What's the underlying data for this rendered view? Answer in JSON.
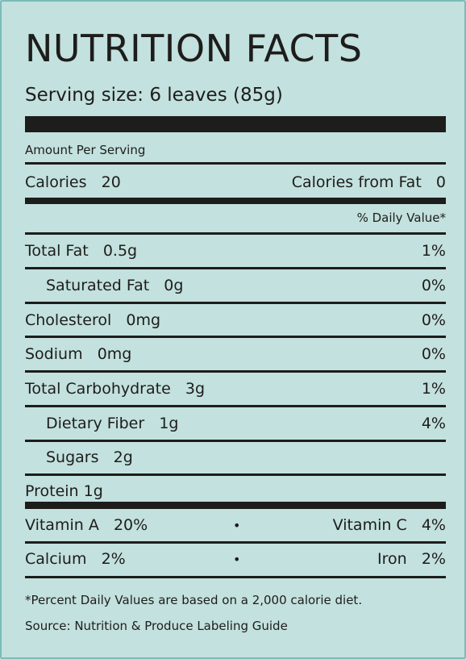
{
  "title": "NUTRITION FACTS",
  "serving_size": "Serving size: 6 leaves (85g)",
  "amount_per_serving": "Amount Per Serving",
  "calories": {
    "label": "Calories",
    "value": "20"
  },
  "calories_from_fat": {
    "label": "Calories from Fat",
    "value": "0"
  },
  "daily_value_header": "% Daily Value*",
  "nutrients": [
    {
      "label": "Total Fat",
      "amount": "0.5g",
      "dv": "1%"
    },
    {
      "label": "Saturated Fat",
      "amount": "0g",
      "dv": "0%"
    },
    {
      "label": "Cholesterol",
      "amount": "0mg",
      "dv": "0%"
    },
    {
      "label": "Sodium",
      "amount": "0mg",
      "dv": "0%"
    },
    {
      "label": "Total Carbohydrate",
      "amount": "3g",
      "dv": "1%"
    },
    {
      "label": "Dietary Fiber",
      "amount": "1g",
      "dv": "4%"
    },
    {
      "label": "Sugars",
      "amount": "2g"
    },
    {
      "label": "Protein",
      "amount": "1g"
    }
  ],
  "vitamins": [
    {
      "left_label": "Vitamin A",
      "left_value": "20%",
      "separator": "•",
      "right_label": "Vitamin C",
      "right_value": "4%"
    },
    {
      "left_label": "Calcium",
      "left_value": "2%",
      "separator": "•",
      "right_label": "Iron",
      "right_value": "2%"
    }
  ],
  "footnote": "*Percent Daily Values are based on a 2,000 calorie diet.",
  "source": "Source: Nutrition & Produce Labeling Guide",
  "colors": {
    "background": "#c3e1de",
    "border": "#7bbdb8",
    "text": "#1d1d1b"
  }
}
